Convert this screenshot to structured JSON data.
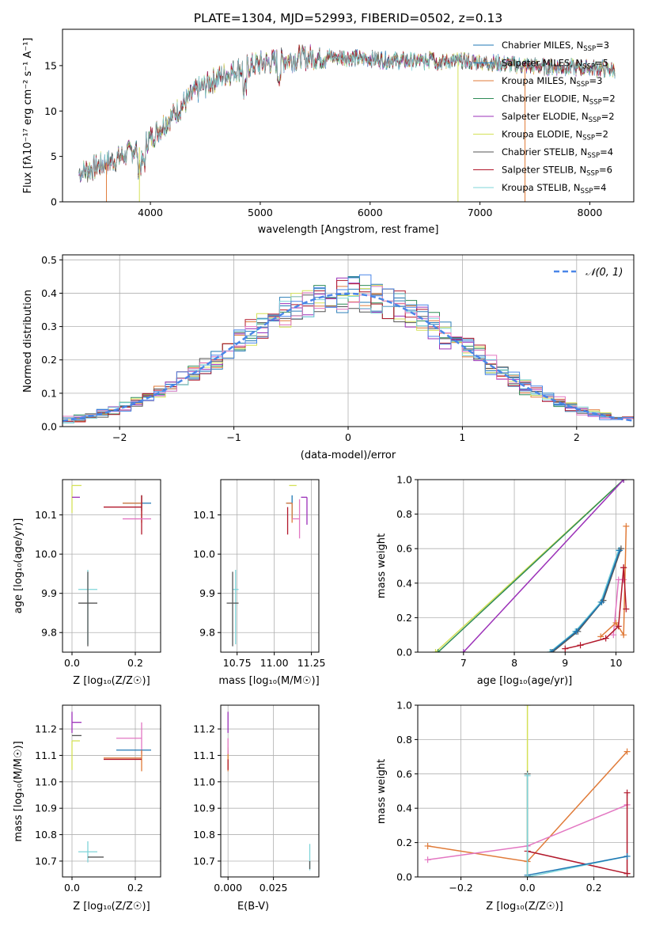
{
  "colors": {
    "chabrier_miles": "#1f77b4",
    "salpeter_miles": "#2c7fb8",
    "kroupa_miles": "#e07b39",
    "chabrier_elodie": "#2e8b57",
    "salpeter_elodie": "#9b30b8",
    "kroupa_elodie": "#d4e157",
    "chabrier_stelib": "#555555",
    "salpeter_stelib": "#b2182b",
    "kroupa_stelib": "#7fd4d9",
    "pink": "#e377c2",
    "normal_curve": "#4a86e8",
    "grid": "#b0b0b0"
  },
  "chart_data": [
    {
      "type": "line",
      "title": "PLATE=1304, MJD=52993, FIBERID=0502, z=0.13",
      "xlabel": "wavelength [Angstrom, rest frame]",
      "ylabel": "Flux [fλ10⁻¹⁷ erg cm⁻² s⁻¹ A⁻¹]",
      "xlim": [
        3200,
        8400
      ],
      "ylim": [
        0,
        19
      ],
      "xticks": [
        "4000",
        "5000",
        "6000",
        "7000",
        "8000"
      ],
      "yticks": [
        "0",
        "5",
        "10",
        "15"
      ],
      "grid": false,
      "legend_position": "top-right",
      "continuum": {
        "x": [
          3350,
          3500,
          3700,
          3900,
          4000,
          4200,
          4400,
          4600,
          4800,
          5000,
          5200,
          5400,
          5600,
          5800,
          6000,
          6200,
          6400,
          6600,
          6800,
          7000,
          7200,
          7400,
          7600,
          7800,
          8000,
          8200
        ],
        "y": [
          3.2,
          3.8,
          4.8,
          6.0,
          7.0,
          9.5,
          12.0,
          13.6,
          14.6,
          15.2,
          15.6,
          15.9,
          16.0,
          15.9,
          15.7,
          15.6,
          15.5,
          15.4,
          15.5,
          15.4,
          15.2,
          15.0,
          14.9,
          14.8,
          14.7,
          14.6
        ]
      },
      "series": [
        {
          "name": "Chabrier MILES, N_SSP=3",
          "label_main": "Chabrier MILES, N",
          "label_sub": "SSP",
          "label_tail": "=3",
          "color": "#1f77b4"
        },
        {
          "name": "Salpeter MILES, N_SSP=5",
          "label_main": "Salpeter MILES, N",
          "label_sub": "SSP",
          "label_tail": "=5",
          "color": "#2c7fb8"
        },
        {
          "name": "Kroupa MILES, N_SSP=3",
          "label_main": "Kroupa MILES, N",
          "label_sub": "SSP",
          "label_tail": "=3",
          "color": "#e07b39"
        },
        {
          "name": "Chabrier ELODIE, N_SSP=2",
          "label_main": "Chabrier ELODIE, N",
          "label_sub": "SSP",
          "label_tail": "=2",
          "color": "#2e8b57"
        },
        {
          "name": "Salpeter ELODIE, N_SSP=2",
          "label_main": "Salpeter ELODIE, N",
          "label_sub": "SSP",
          "label_tail": "=2",
          "color": "#9b30b8"
        },
        {
          "name": "Kroupa ELODIE, N_SSP=2",
          "label_main": "Kroupa ELODIE, N",
          "label_sub": "SSP",
          "label_tail": "=2",
          "color": "#d4e157"
        },
        {
          "name": "Chabrier STELIB, N_SSP=4",
          "label_main": "Chabrier STELIB, N",
          "label_sub": "SSP",
          "label_tail": "=4",
          "color": "#555555"
        },
        {
          "name": "Salpeter STELIB, N_SSP=6",
          "label_main": "Salpeter STELIB, N",
          "label_sub": "SSP",
          "label_tail": "=6",
          "color": "#b2182b"
        },
        {
          "name": "Kroupa STELIB, N_SSP=4",
          "label_main": "Kroupa STELIB, N",
          "label_sub": "SSP",
          "label_tail": "=4",
          "color": "#7fd4d9"
        }
      ]
    },
    {
      "type": "histogram",
      "xlabel": "(data-model)/error",
      "ylabel": "Normed distribution",
      "xlim": [
        -2.5,
        2.5
      ],
      "ylim": [
        0,
        0.515
      ],
      "xticks": [
        "−2",
        "−1",
        "0",
        "1",
        "2"
      ],
      "yticks": [
        "0.0",
        "0.1",
        "0.2",
        "0.3",
        "0.4",
        "0.5"
      ],
      "grid": true,
      "legend_position": "top-right",
      "legend": "𝒩(0, 1)",
      "bin_width": 0.1
    },
    {
      "type": "scatter",
      "xlabel": "Z [log₁₀(Z/Z☉)]",
      "ylabel": "age [log₁₀(age/yr)]",
      "xlim": [
        -0.03,
        0.28
      ],
      "ylim": [
        9.75,
        10.19
      ],
      "xticks": [
        "0.0",
        "0.2"
      ],
      "yticks": [
        "9.8",
        "9.9",
        "10.0",
        "10.1"
      ],
      "points": [
        {
          "x": 0.0,
          "y": 10.175,
          "xerr": [
            0.0,
            0.03
          ],
          "yerr": [
            0.07,
            0.0
          ],
          "color": "#d4e157"
        },
        {
          "x": 0.0,
          "y": 10.145,
          "xerr": [
            0.0,
            0.025
          ],
          "yerr": [
            0.0,
            0.0
          ],
          "color": "#9b30b8"
        },
        {
          "x": 0.22,
          "y": 10.13,
          "xerr": [
            0.06,
            0.03
          ],
          "yerr": [
            0.02,
            0.02
          ],
          "color": "#1f77b4"
        },
        {
          "x": 0.22,
          "y": 10.13,
          "xerr": [
            0.06,
            0.0
          ],
          "yerr": [
            0.05,
            0.02
          ],
          "color": "#e07b39"
        },
        {
          "x": 0.22,
          "y": 10.12,
          "xerr": [
            0.12,
            0.0
          ],
          "yerr": [
            0.07,
            0.03
          ],
          "color": "#b2182b"
        },
        {
          "x": 0.22,
          "y": 10.09,
          "xerr": [
            0.06,
            0.03
          ],
          "yerr": [
            0.0,
            0.0
          ],
          "color": "#e377c2"
        },
        {
          "x": 0.05,
          "y": 9.91,
          "xerr": [
            0.03,
            0.03
          ],
          "yerr": [
            0.14,
            0.05
          ],
          "color": "#7fd4d9"
        },
        {
          "x": 0.05,
          "y": 9.875,
          "xerr": [
            0.03,
            0.03
          ],
          "yerr": [
            0.11,
            0.08
          ],
          "color": "#555555"
        }
      ]
    },
    {
      "type": "scatter",
      "xlabel": "mass [log₁₀(M/M☉)]",
      "ylabel": "",
      "xlim": [
        10.64,
        11.3
      ],
      "ylim": [
        9.75,
        10.19
      ],
      "xticks": [
        "10.75",
        "11.00",
        "11.25"
      ],
      "yticks": [
        "9.8",
        "9.9",
        "10.0",
        "10.1"
      ],
      "points": [
        {
          "x": 11.15,
          "y": 10.175,
          "xerr": [
            0.05,
            0.0
          ],
          "yerr": [
            0.0,
            0.0
          ],
          "color": "#d4e157"
        },
        {
          "x": 11.22,
          "y": 10.145,
          "xerr": [
            0.04,
            0.0
          ],
          "yerr": [
            0.07,
            0.0
          ],
          "color": "#9b30b8"
        },
        {
          "x": 11.12,
          "y": 10.13,
          "xerr": [
            0.04,
            0.0
          ],
          "yerr": [
            0.04,
            0.02
          ],
          "color": "#1f77b4"
        },
        {
          "x": 11.12,
          "y": 10.13,
          "xerr": [
            0.04,
            0.0
          ],
          "yerr": [
            0.05,
            0.0
          ],
          "color": "#e07b39"
        },
        {
          "x": 11.09,
          "y": 10.12,
          "xerr": [
            0.0,
            0.0
          ],
          "yerr": [
            0.07,
            0.0
          ],
          "color": "#b2182b"
        },
        {
          "x": 11.17,
          "y": 10.09,
          "xerr": [
            0.05,
            0.0
          ],
          "yerr": [
            0.05,
            0.05
          ],
          "color": "#e377c2"
        },
        {
          "x": 10.74,
          "y": 9.91,
          "xerr": [
            0.02,
            0.02
          ],
          "yerr": [
            0.14,
            0.05
          ],
          "color": "#7fd4d9"
        },
        {
          "x": 10.72,
          "y": 9.875,
          "xerr": [
            0.04,
            0.04
          ],
          "yerr": [
            0.11,
            0.08
          ],
          "color": "#555555"
        }
      ]
    },
    {
      "type": "line",
      "xlabel": "age [log₁₀(age/yr)]",
      "ylabel": "mass weight",
      "xlim": [
        6.1,
        10.35
      ],
      "ylim": [
        0,
        1.0
      ],
      "xticks": [
        "7",
        "8",
        "9",
        "10"
      ],
      "yticks": [
        "0.0",
        "0.2",
        "0.4",
        "0.6",
        "0.8",
        "1.0"
      ],
      "grid": true,
      "series": [
        {
          "color": "#d4e157",
          "x": [
            6.45,
            10.15
          ],
          "y": [
            0.0,
            1.0
          ]
        },
        {
          "color": "#2e8b57",
          "x": [
            6.5,
            10.15
          ],
          "y": [
            0.0,
            1.0
          ]
        },
        {
          "color": "#9b30b8",
          "x": [
            7.0,
            10.15
          ],
          "y": [
            0.0,
            1.0
          ]
        },
        {
          "color": "#7fd4d9",
          "x": [
            8.7,
            9.2,
            9.7,
            10.05
          ],
          "y": [
            0.0,
            0.12,
            0.29,
            0.59
          ]
        },
        {
          "color": "#555555",
          "x": [
            8.75,
            9.25,
            9.75,
            10.1
          ],
          "y": [
            0.0,
            0.12,
            0.3,
            0.6
          ]
        },
        {
          "color": "#1f77b4",
          "x": [
            8.72,
            9.22,
            9.72,
            10.07
          ],
          "y": [
            0.0,
            0.12,
            0.29,
            0.59
          ]
        },
        {
          "color": "#e377c2",
          "x": [
            9.95,
            10.05,
            10.15
          ],
          "y": [
            0.1,
            0.42,
            0.42
          ]
        },
        {
          "color": "#e07b39",
          "x": [
            9.7,
            10.0,
            10.15,
            10.2
          ],
          "y": [
            0.09,
            0.17,
            0.1,
            0.73
          ]
        },
        {
          "color": "#b2182b",
          "x": [
            9.0,
            9.3,
            9.8,
            10.05,
            10.15,
            10.2,
            10.15
          ],
          "y": [
            0.02,
            0.04,
            0.08,
            0.15,
            0.49,
            0.25,
            0.49
          ]
        }
      ]
    },
    {
      "type": "scatter",
      "xlabel": "Z [log₁₀(Z/Z☉)]",
      "ylabel": "mass [log₁₀(M/M☉)]",
      "xlim": [
        -0.03,
        0.28
      ],
      "ylim": [
        10.64,
        11.29
      ],
      "xticks": [
        "0.0",
        "0.2"
      ],
      "yticks": [
        "10.7",
        "10.8",
        "10.9",
        "11.0",
        "11.1",
        "11.2"
      ],
      "points": [
        {
          "x": 0.0,
          "y": 11.225,
          "xerr": [
            0.0,
            0.03
          ],
          "yerr": [
            0.04,
            0.04
          ],
          "color": "#9b30b8"
        },
        {
          "x": 0.0,
          "y": 11.175,
          "xerr": [
            0.0,
            0.03
          ],
          "yerr": [
            0.0,
            0.0
          ],
          "color": "#555555"
        },
        {
          "x": 0.0,
          "y": 11.155,
          "xerr": [
            0.0,
            0.025
          ],
          "yerr": [
            0.11,
            0.0
          ],
          "color": "#d4e157"
        },
        {
          "x": 0.22,
          "y": 11.165,
          "xerr": [
            0.08,
            0.0
          ],
          "yerr": [
            0.06,
            0.06
          ],
          "color": "#e377c2"
        },
        {
          "x": 0.22,
          "y": 11.12,
          "xerr": [
            0.08,
            0.03
          ],
          "yerr": [
            0.0,
            0.0
          ],
          "color": "#1f77b4"
        },
        {
          "x": 0.22,
          "y": 11.09,
          "xerr": [
            0.12,
            0.0
          ],
          "yerr": [
            0.05,
            0.03
          ],
          "color": "#e07b39"
        },
        {
          "x": 0.22,
          "y": 11.085,
          "xerr": [
            0.12,
            0.0
          ],
          "yerr": [
            0.0,
            0.0
          ],
          "color": "#b2182b"
        },
        {
          "x": 0.05,
          "y": 10.735,
          "xerr": [
            0.03,
            0.03
          ],
          "yerr": [
            0.04,
            0.04
          ],
          "color": "#7fd4d9"
        },
        {
          "x": 0.05,
          "y": 10.715,
          "xerr": [
            0.0,
            0.05
          ],
          "yerr": [
            0.0,
            0.0
          ],
          "color": "#555555"
        }
      ]
    },
    {
      "type": "scatter",
      "xlabel": "E(B-V)",
      "ylabel": "",
      "xlim": [
        -0.004,
        0.05
      ],
      "ylim": [
        10.64,
        11.29
      ],
      "xticks": [
        "0.000",
        "0.025"
      ],
      "yticks": [
        "10.7",
        "10.8",
        "10.9",
        "11.0",
        "11.1",
        "11.2"
      ],
      "points": [
        {
          "x": 0.0,
          "y": 11.225,
          "xerr": [
            0.0,
            0.0
          ],
          "yerr": [
            0.04,
            0.04
          ],
          "color": "#9b30b8"
        },
        {
          "x": 0.0,
          "y": 11.13,
          "xerr": [
            0.0,
            0.0
          ],
          "yerr": [
            0.08,
            0.0
          ],
          "color": "#d4e157"
        },
        {
          "x": 0.0,
          "y": 11.09,
          "xerr": [
            0.0,
            0.0
          ],
          "yerr": [
            0.05,
            0.03
          ],
          "color": "#e07b39"
        },
        {
          "x": 0.0,
          "y": 11.085,
          "xerr": [
            0.0,
            0.0
          ],
          "yerr": [
            0.04,
            0.0
          ],
          "color": "#b2182b"
        },
        {
          "x": 0.0,
          "y": 11.165,
          "xerr": [
            0.0,
            0.0
          ],
          "yerr": [
            0.06,
            0.0
          ],
          "color": "#e377c2"
        },
        {
          "x": 0.045,
          "y": 10.715,
          "xerr": [
            0.0,
            0.0
          ],
          "yerr": [
            0.05,
            0.05
          ],
          "color": "#7fd4d9"
        },
        {
          "x": 0.045,
          "y": 10.7,
          "xerr": [
            0.0,
            0.0
          ],
          "yerr": [
            0.03,
            0.0
          ],
          "color": "#555555"
        }
      ]
    },
    {
      "type": "line",
      "xlabel": "Z [log₁₀(Z/Z☉)]",
      "ylabel": "mass weight",
      "xlim": [
        -0.33,
        0.32
      ],
      "ylim": [
        0,
        1.0
      ],
      "xticks": [
        "−0.2",
        "0.0",
        "0.2"
      ],
      "yticks": [
        "0.0",
        "0.2",
        "0.4",
        "0.6",
        "0.8",
        "1.0"
      ],
      "grid": true,
      "series": [
        {
          "color": "#d4e157",
          "x": [
            0.0,
            0.0
          ],
          "y": [
            0.0,
            1.0
          ]
        },
        {
          "color": "#e07b39",
          "x": [
            -0.3,
            0.0,
            0.3
          ],
          "y": [
            0.18,
            0.09,
            0.73
          ]
        },
        {
          "color": "#e377c2",
          "x": [
            -0.3,
            0.0,
            0.3
          ],
          "y": [
            0.1,
            0.18,
            0.42
          ]
        },
        {
          "color": "#b2182b",
          "x": [
            0.0,
            0.3
          ],
          "y": [
            0.15,
            0.02
          ]
        },
        {
          "color": "#b2182b",
          "x": [
            0.3,
            0.3
          ],
          "y": [
            0.02,
            0.49
          ]
        },
        {
          "color": "#7fd4d9",
          "x": [
            0.0,
            0.3
          ],
          "y": [
            0.0,
            0.12
          ]
        },
        {
          "color": "#1f77b4",
          "x": [
            0.0,
            0.3
          ],
          "y": [
            0.01,
            0.12
          ]
        },
        {
          "color": "#555555",
          "x": [
            0.0,
            0.0
          ],
          "y": [
            0.0,
            0.6
          ]
        },
        {
          "color": "#7fd4d9",
          "x": [
            0.0,
            0.0
          ],
          "y": [
            0.0,
            0.59
          ]
        }
      ]
    }
  ]
}
